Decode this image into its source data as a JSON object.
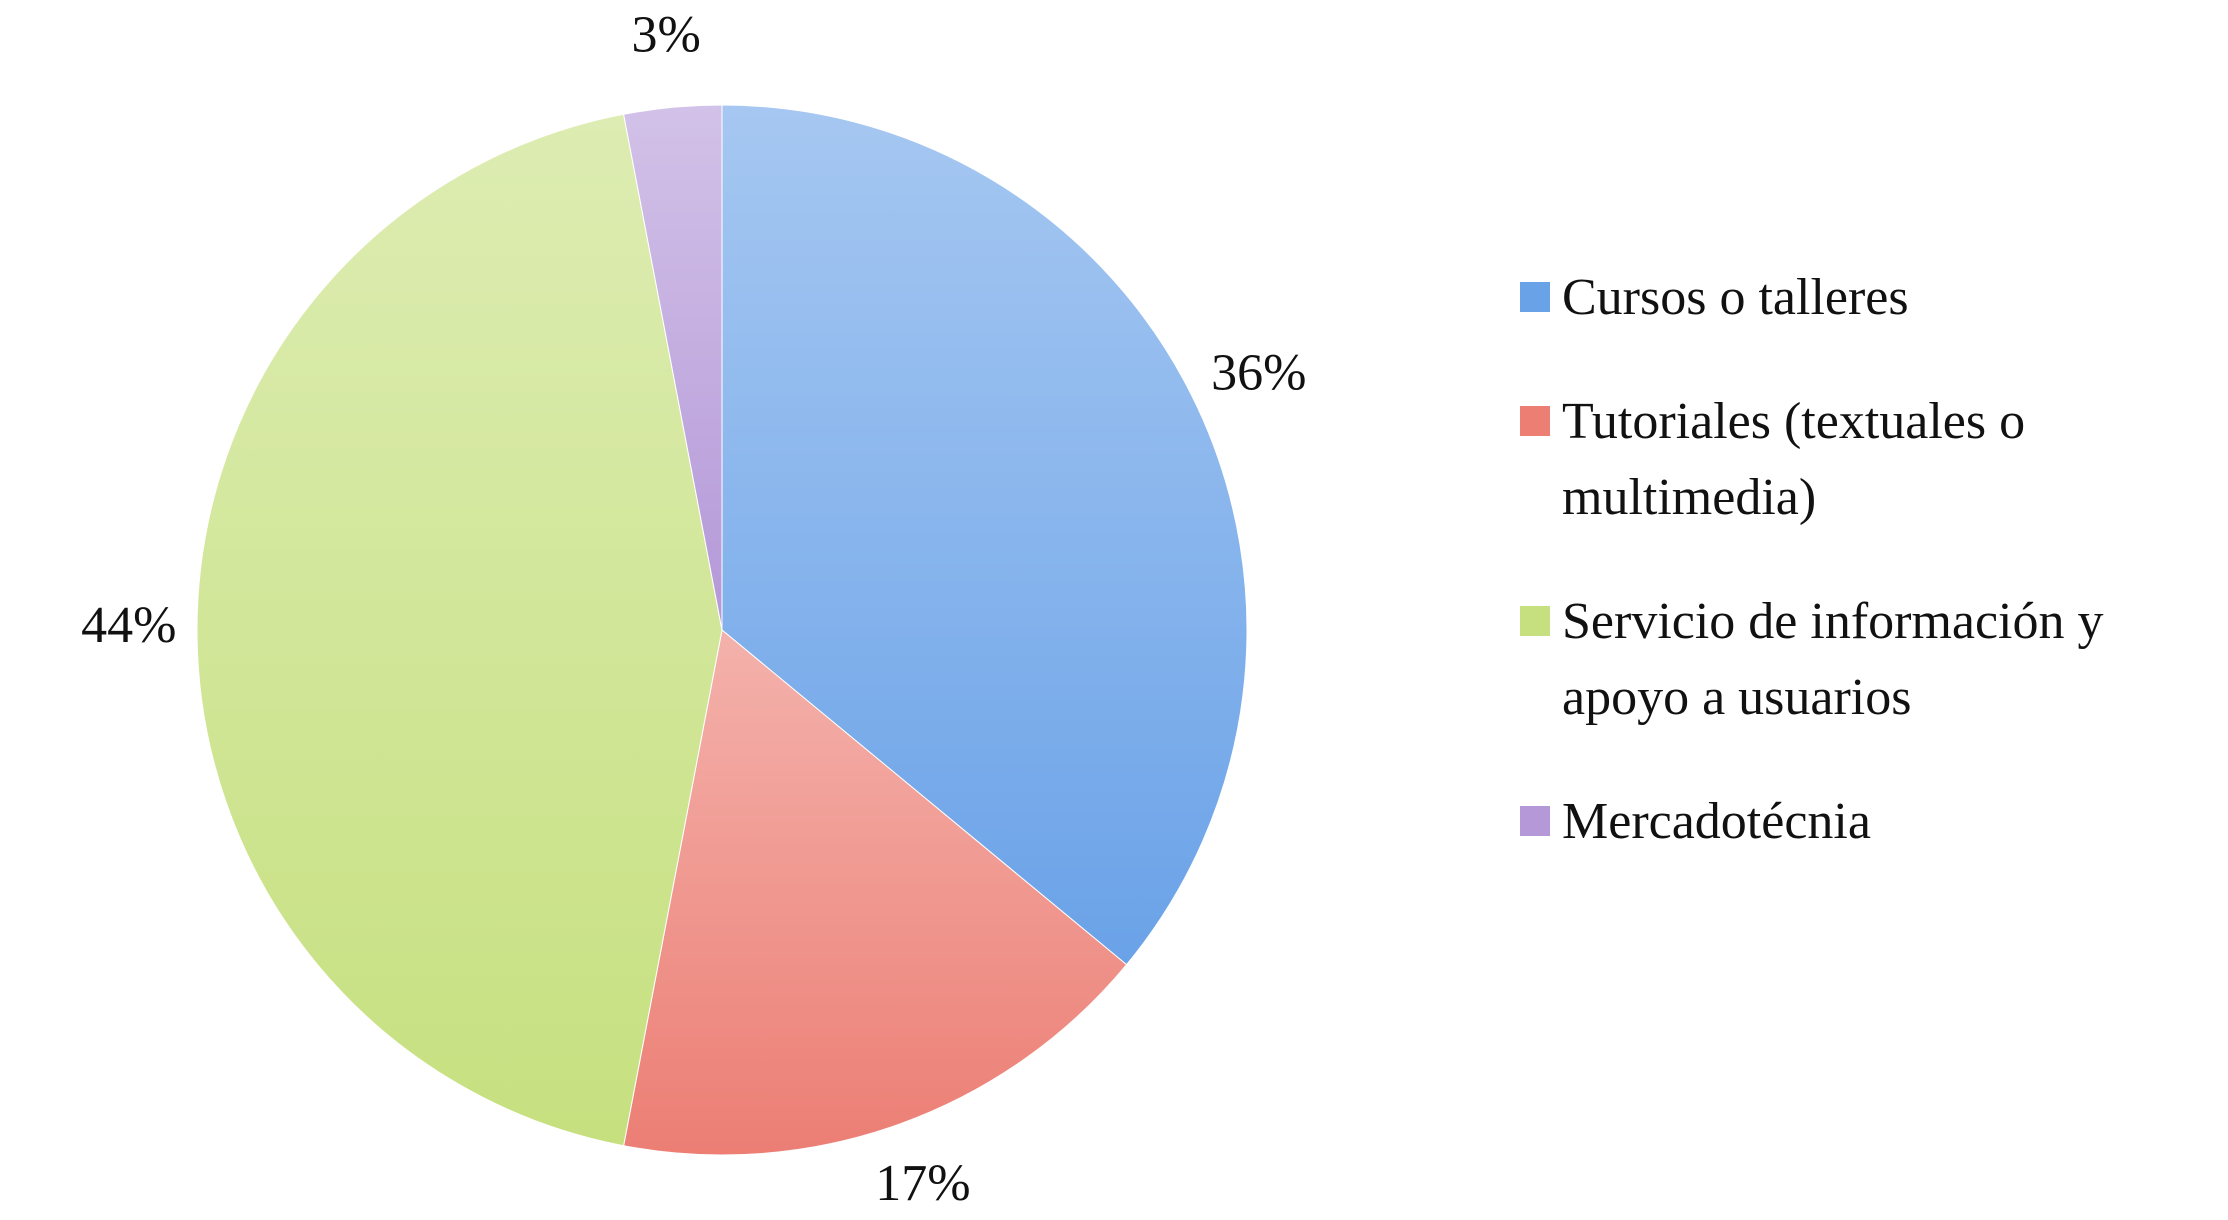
{
  "chart_data": {
    "type": "pie",
    "categories": [
      "Cursos o talleres",
      "Tutoriales (textuales o multimedia)",
      "Servicio de información y apoyo a usuarios",
      "Mercadotécnia"
    ],
    "values": [
      36,
      17,
      44,
      3
    ],
    "value_labels": [
      "36%",
      "17%",
      "44%",
      "3%"
    ],
    "colors": [
      "#6aa2e8",
      "#ec7e74",
      "#c6e07f",
      "#b498d8"
    ],
    "legend": "right"
  }
}
